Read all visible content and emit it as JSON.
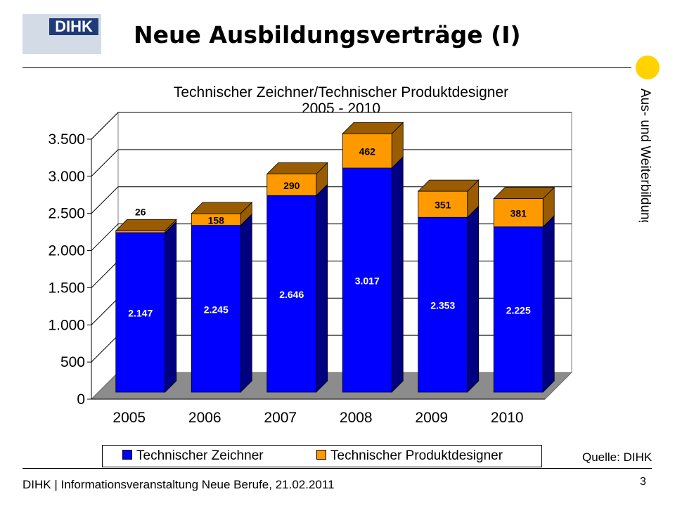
{
  "logo": {
    "text": "DIHK"
  },
  "slide": {
    "title": "Neue Ausbildungsverträge (I)",
    "side_label": "Aus- und Weiterbildung",
    "source": "Quelle: DIHK",
    "footer": "DIHK | Informationsveranstaltung Neue Berufe, 21.02.2011",
    "page_number": "3"
  },
  "colors": {
    "accent_dot": "#ffd200",
    "logo_bg": "#d3dbe7",
    "logo_box": "#1f3b78"
  },
  "chart_data": {
    "type": "bar",
    "stacked": true,
    "three_d": true,
    "title_line1": "Technischer Zeichner/Technischer Produktdesigner",
    "title_line2": "2005 - 2010",
    "categories": [
      "2005",
      "2006",
      "2007",
      "2008",
      "2009",
      "2010"
    ],
    "series": [
      {
        "name": "Technischer Zeichner",
        "values": [
          2147,
          2245,
          2646,
          3017,
          2353,
          2225
        ],
        "labels": [
          "2.147",
          "2.245",
          "2.646",
          "3.017",
          "2.353",
          "2.225"
        ],
        "color": "#0000ff",
        "side_color": "#000080"
      },
      {
        "name": "Technischer Produktdesigner",
        "values": [
          26,
          158,
          290,
          462,
          351,
          381
        ],
        "labels": [
          "26",
          "158",
          "290",
          "462",
          "351",
          "381"
        ],
        "color": "#ff9900",
        "side_color": "#995c00"
      }
    ],
    "yticks": [
      0,
      500,
      1000,
      1500,
      2000,
      2500,
      3000,
      3500
    ],
    "ytick_labels": [
      "0",
      "500",
      "1.000",
      "1.500",
      "2.000",
      "2.500",
      "3.000",
      "3.500"
    ],
    "ylim": [
      0,
      3500
    ],
    "grid": true,
    "legend_position": "bottom"
  }
}
